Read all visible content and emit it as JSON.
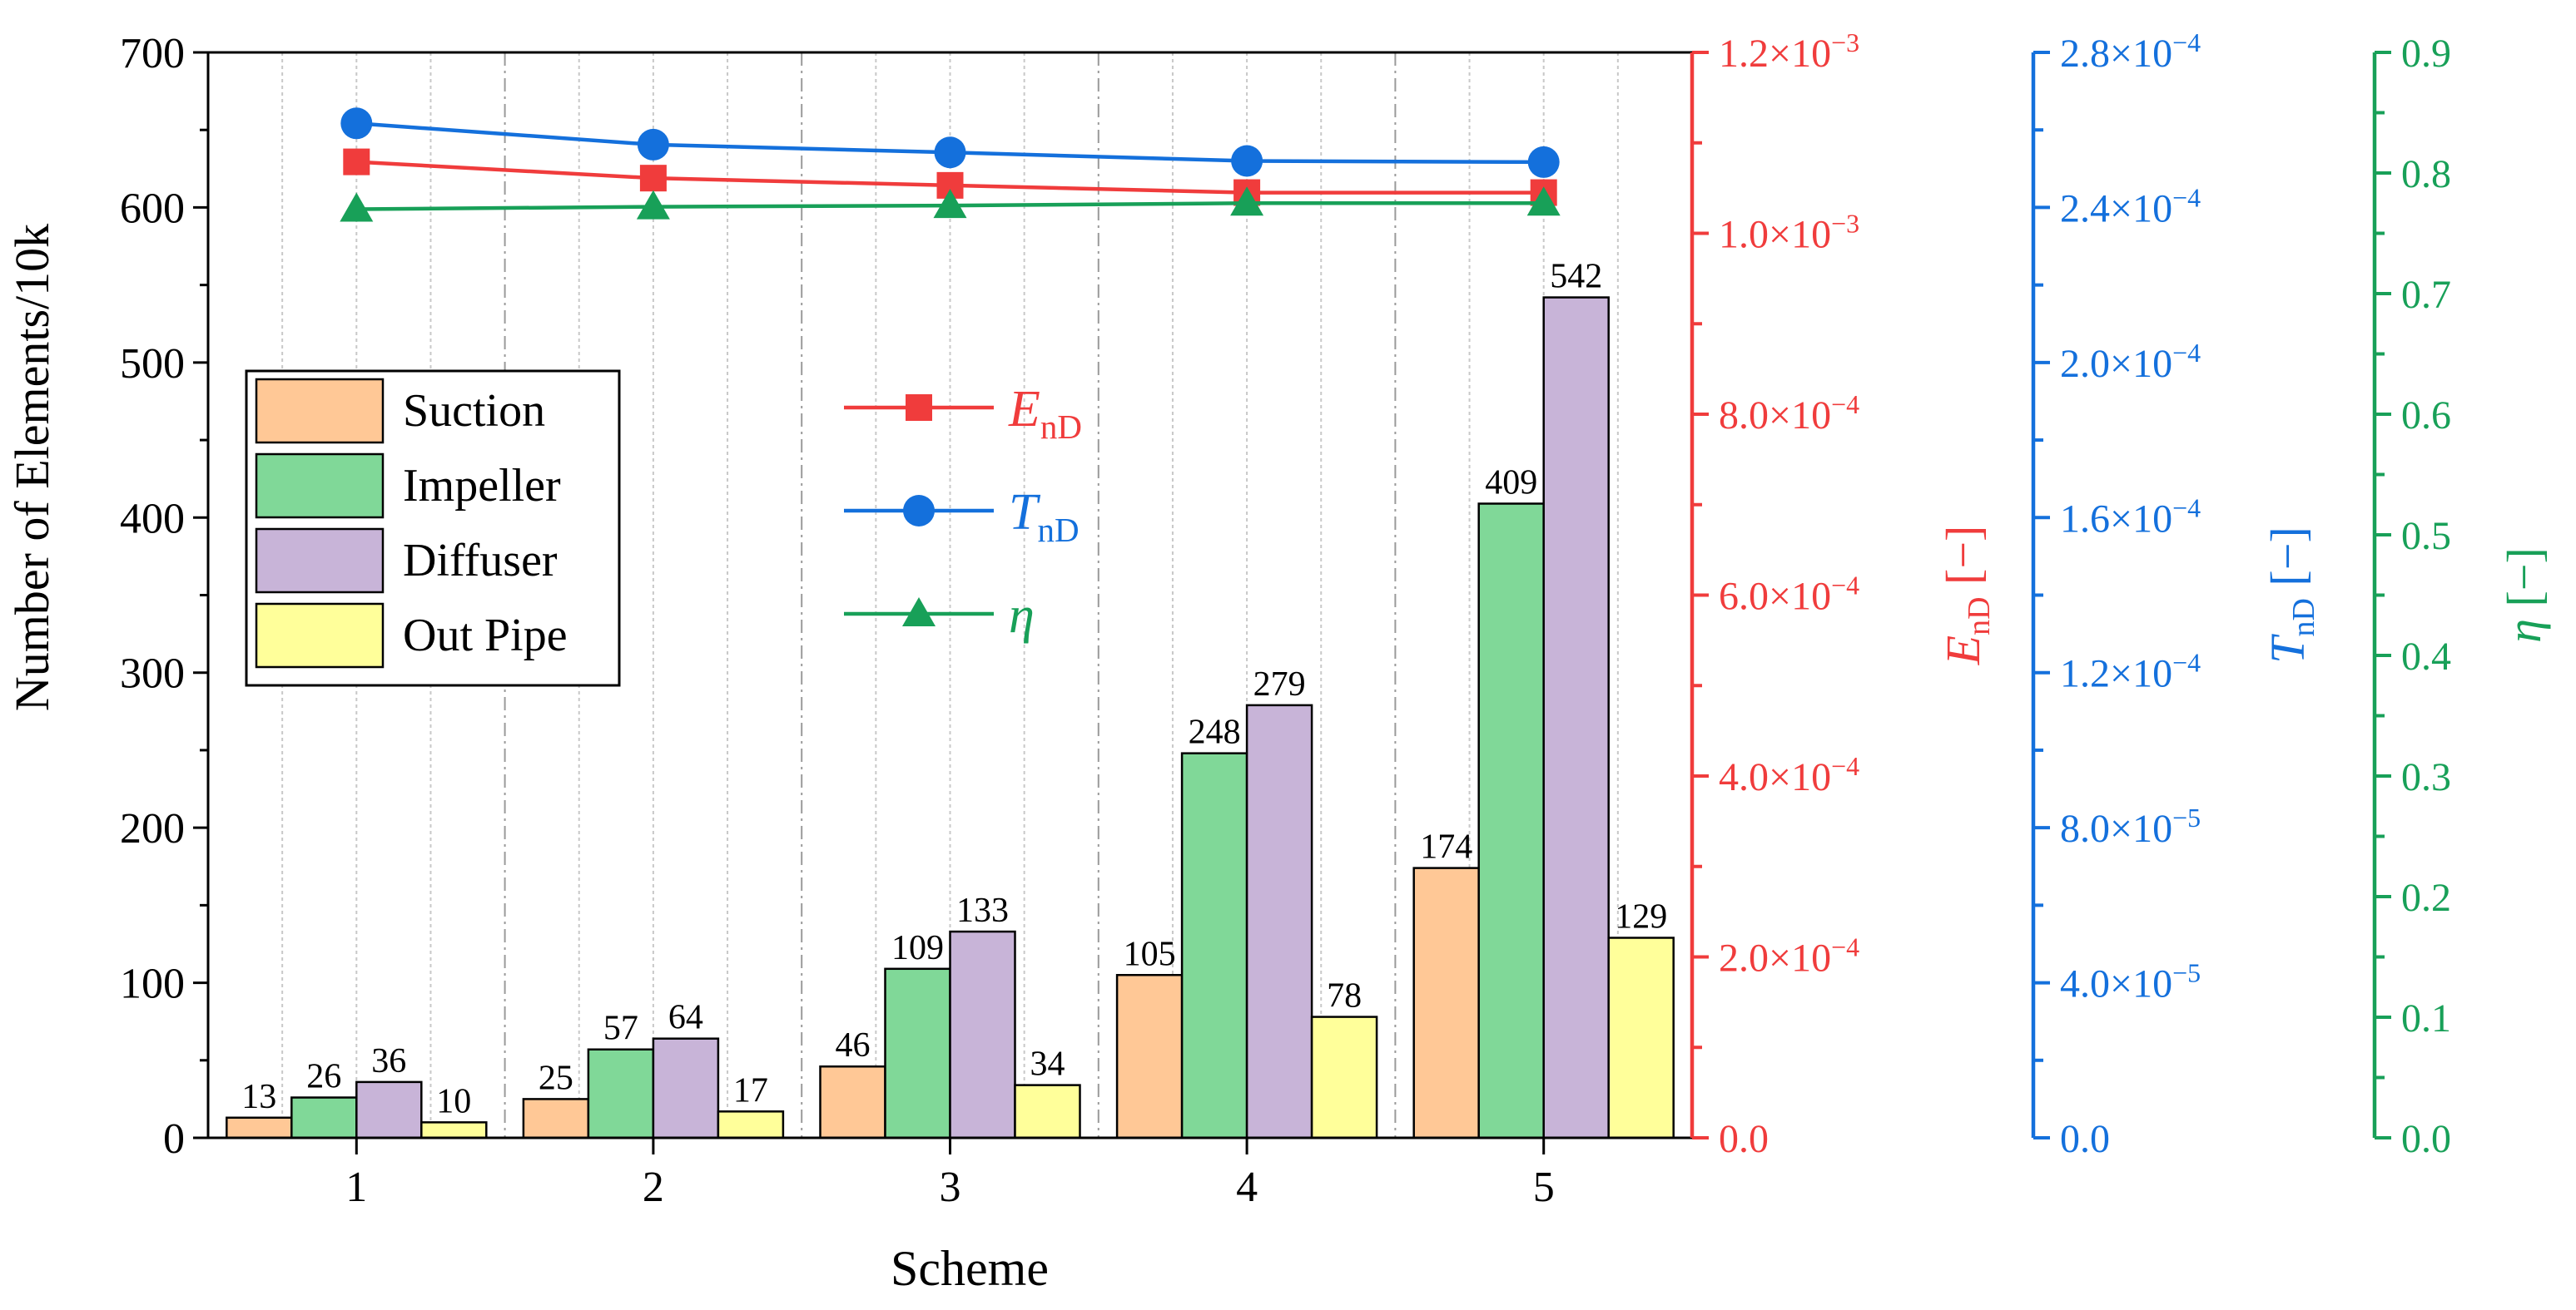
{
  "chart_data": {
    "type": "bar",
    "xlabel": "Scheme",
    "ylabel": "Number of Elements/10k",
    "categories": [
      "1",
      "2",
      "3",
      "4",
      "5"
    ],
    "ylim": [
      0,
      700
    ],
    "yticks": [
      "0",
      "100",
      "200",
      "300",
      "400",
      "500",
      "600",
      "700"
    ],
    "series": [
      {
        "name": "Suction",
        "color": "#ffc896",
        "values": [
          13,
          25,
          46,
          105,
          174
        ]
      },
      {
        "name": "Impeller",
        "color": "#80d898",
        "values": [
          26,
          57,
          109,
          248,
          409
        ]
      },
      {
        "name": "Diffuser",
        "color": "#c8b4d8",
        "values": [
          36,
          64,
          133,
          279,
          542
        ]
      },
      {
        "name": "Out Pipe",
        "color": "#ffff9a",
        "values": [
          10,
          17,
          34,
          78,
          129
        ]
      }
    ],
    "line_series": [
      {
        "name": "E",
        "subscript": "nD",
        "color": "#f03c3c",
        "marker": "square",
        "values": [
          0.001079,
          0.001061,
          0.001053,
          0.001045,
          0.001045
        ],
        "axis_label": "E",
        "axis_subscript": "nD",
        "axis_unit": "[−]",
        "ylim": [
          0,
          0.0012
        ],
        "ticks": [
          [
            "0.0",
            ""
          ],
          [
            "2.0×10",
            "−4"
          ],
          [
            "4.0×10",
            "−4"
          ],
          [
            "6.0×10",
            "−4"
          ],
          [
            "8.0×10",
            "−4"
          ],
          [
            "1.0×10",
            "−3"
          ],
          [
            "1.2×10",
            "−3"
          ]
        ]
      },
      {
        "name": "T",
        "subscript": "nD",
        "color": "#1470dc",
        "marker": "circle",
        "values": [
          0.0002617,
          0.0002562,
          0.0002542,
          0.000252,
          0.0002517
        ],
        "axis_label": "T",
        "axis_subscript": "nD",
        "axis_unit": "[−]",
        "ylim": [
          0,
          0.00028
        ],
        "ticks": [
          [
            "0.0",
            ""
          ],
          [
            "4.0×10",
            "−5"
          ],
          [
            "8.0×10",
            "−5"
          ],
          [
            "1.2×10",
            "−4"
          ],
          [
            "1.6×10",
            "−4"
          ],
          [
            "2.0×10",
            "−4"
          ],
          [
            "2.4×10",
            "−4"
          ],
          [
            "2.8×10",
            "−4"
          ]
        ]
      },
      {
        "name": "η",
        "subscript": "",
        "color": "#18a058",
        "marker": "triangle",
        "values": [
          0.77,
          0.772,
          0.773,
          0.775,
          0.775
        ],
        "axis_label": "η",
        "axis_subscript": "",
        "axis_unit": "[−]",
        "ylim": [
          0,
          0.9
        ],
        "ticks": [
          [
            "0.0",
            ""
          ],
          [
            "0.1",
            ""
          ],
          [
            "0.2",
            ""
          ],
          [
            "0.3",
            ""
          ],
          [
            "0.4",
            ""
          ],
          [
            "0.5",
            ""
          ],
          [
            "0.6",
            ""
          ],
          [
            "0.7",
            ""
          ],
          [
            "0.8",
            ""
          ],
          [
            "0.9",
            ""
          ]
        ]
      }
    ],
    "bar_legend_position": "upper-left",
    "line_legend_position": "upper-center",
    "grid": "vertical dashed"
  }
}
